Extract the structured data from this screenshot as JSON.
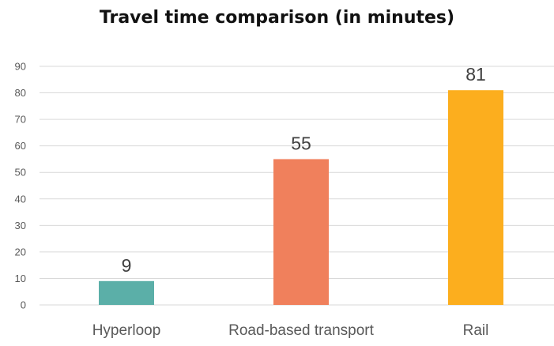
{
  "chart_data": {
    "type": "bar",
    "title": "Travel time comparison (in minutes)",
    "xlabel": "",
    "ylabel": "",
    "categories": [
      "Hyperloop",
      "Road-based transport",
      "Rail"
    ],
    "values": [
      9,
      55,
      81
    ],
    "data_labels": [
      "9",
      "55",
      "81"
    ],
    "colors": [
      "#5bafa8",
      "#f0805c",
      "#fcae1e"
    ],
    "ylim": [
      0,
      90
    ],
    "yticks": [
      0,
      10,
      20,
      30,
      40,
      50,
      60,
      70,
      80,
      90
    ],
    "grid": true,
    "legend": "none"
  }
}
